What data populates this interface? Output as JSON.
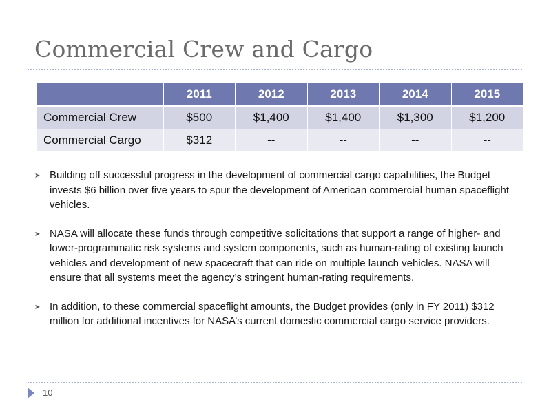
{
  "slide": {
    "title": "Commercial Crew and Cargo",
    "page_number": "10"
  },
  "table": {
    "corner": "",
    "years": [
      "2011",
      "2012",
      "2013",
      "2014",
      "2015"
    ],
    "rows": [
      {
        "label": "Commercial Crew",
        "values": [
          "$500",
          "$1,400",
          "$1,400",
          "$1,300",
          "$1,200"
        ]
      },
      {
        "label": "Commercial Cargo",
        "values": [
          "$312",
          "--",
          "--",
          "--",
          "--"
        ]
      }
    ]
  },
  "bullets": [
    "Building off successful progress in the development of commercial cargo capabilities, the Budget invests $6 billion over five years to spur the development of American commercial human spaceflight vehicles.",
    "NASA will allocate these funds through competitive solicitations that support a range of higher- and lower-programmatic risk systems and system components, such as human-rating of existing launch vehicles and development of new spacecraft that can ride on multiple launch vehicles. NASA will ensure that all systems meet the agency’s stringent human-rating requirements.",
    "In addition, to these commercial spaceflight amounts, the Budget provides (only in FY 2011) $312 million for additional incentives for NASA’s current domestic commercial cargo service providers."
  ],
  "icons": {
    "bullet": "chevron-right-icon",
    "page_marker": "triangle-right-icon"
  },
  "colors": {
    "title": "#6b6b6b",
    "header_fill": "#6f79b0",
    "row_fill_1": "#d2d4e3",
    "row_fill_2": "#e8e9f1",
    "rule": "#a9b4d3",
    "page_marker": "#7a86bd"
  }
}
